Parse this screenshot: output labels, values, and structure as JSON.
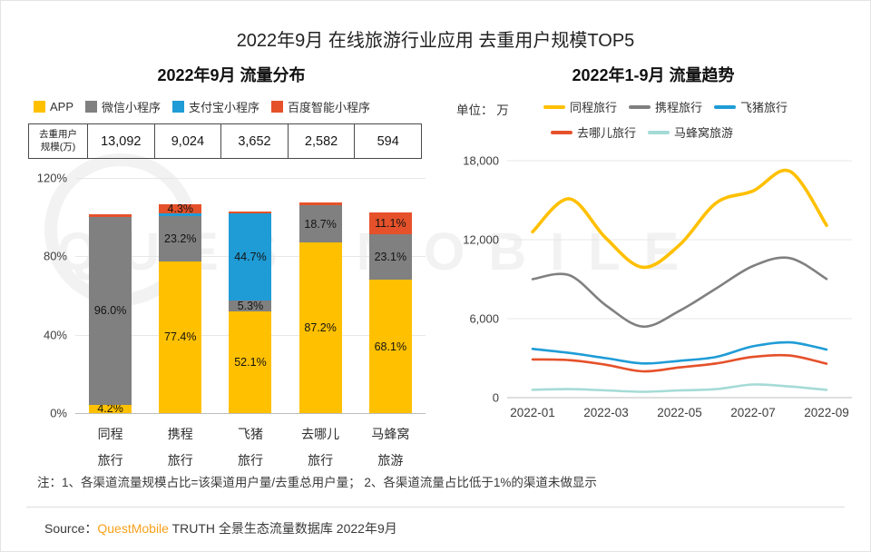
{
  "page_title": "2022年9月 在线旅游行业应用 去重用户规模TOP5",
  "watermark": "QUESTMOBILE",
  "left": {
    "title": "2022年9月 流量分布",
    "table": {
      "header": "去重用户\n规模(万)",
      "values": [
        "13,092",
        "9,024",
        "3,652",
        "2,582",
        "594"
      ]
    }
  },
  "right": {
    "title": "2022年1-9月 流量趋势",
    "unit": "单位： 万"
  },
  "note": "注：1、各渠道流量规模占比=该渠道用户量/去重总用户量； 2、各渠道流量占比低于1%的渠道未做显示",
  "source": {
    "prefix": "Source：",
    "brand": "QuestMobile",
    "suffix": " TRUTH 全景生态流量数据库 2022年9月"
  },
  "chart_data": [
    {
      "type": "bar",
      "stacked": true,
      "title": "2022年9月 流量分布",
      "categories": [
        "同程旅行",
        "携程旅行",
        "飞猪旅行",
        "去哪儿旅行",
        "马蜂窝旅游"
      ],
      "dedup_user_scale_wan": [
        13092,
        9024,
        3652,
        2582,
        594
      ],
      "ylim": [
        0,
        120
      ],
      "ytick_labels": [
        "120%",
        "80%",
        "40%",
        "0%"
      ],
      "ytick_values": [
        120,
        80,
        40,
        0
      ],
      "label_min_pct": 4,
      "series": [
        {
          "name": "APP",
          "color": "#FFC000",
          "values": [
            4.2,
            77.4,
            52.1,
            87.2,
            68.1
          ]
        },
        {
          "name": "微信小程序",
          "color": "#808080",
          "values": [
            96.0,
            23.2,
            5.3,
            18.7,
            23.1
          ]
        },
        {
          "name": "支付宝小程序",
          "color": "#1F9CD6",
          "values": [
            0,
            1.5,
            44.7,
            0,
            0
          ]
        },
        {
          "name": "百度智能小程序",
          "color": "#E5512A",
          "values": [
            1.4,
            4.3,
            1.0,
            1.8,
            11.1
          ]
        }
      ]
    },
    {
      "type": "line",
      "title": "2022年1-9月 流量趋势",
      "unit": "万",
      "x": [
        "2022-01",
        "2022-02",
        "2022-03",
        "2022-04",
        "2022-05",
        "2022-06",
        "2022-07",
        "2022-08",
        "2022-09"
      ],
      "ylim": [
        0,
        18000
      ],
      "ytick_labels": [
        "18,000",
        "12,000",
        "6,000",
        "0"
      ],
      "ytick_values": [
        18000,
        12000,
        6000,
        0
      ],
      "xtick_labels": [
        "2022-01",
        "2022-03",
        "2022-05",
        "2022-07",
        "2022-09"
      ],
      "xtick_indices": [
        0,
        2,
        4,
        6,
        8
      ],
      "series": [
        {
          "name": "同程旅行",
          "color": "#FFC000",
          "values": [
            12600,
            15100,
            12100,
            9900,
            11600,
            14800,
            15700,
            17200,
            13092
          ]
        },
        {
          "name": "携程旅行",
          "color": "#808080",
          "values": [
            9000,
            9300,
            7000,
            5400,
            6600,
            8300,
            10000,
            10600,
            9024
          ]
        },
        {
          "name": "飞猪旅行",
          "color": "#1F9CD6",
          "values": [
            3700,
            3400,
            3000,
            2600,
            2800,
            3100,
            3900,
            4200,
            3652
          ]
        },
        {
          "name": "去哪儿旅行",
          "color": "#E5512A",
          "values": [
            2900,
            2850,
            2500,
            2000,
            2300,
            2600,
            3100,
            3200,
            2582
          ]
        },
        {
          "name": "马蜂窝旅游",
          "color": "#A5DBD6",
          "values": [
            600,
            650,
            550,
            450,
            550,
            650,
            1000,
            850,
            594
          ]
        }
      ]
    }
  ]
}
